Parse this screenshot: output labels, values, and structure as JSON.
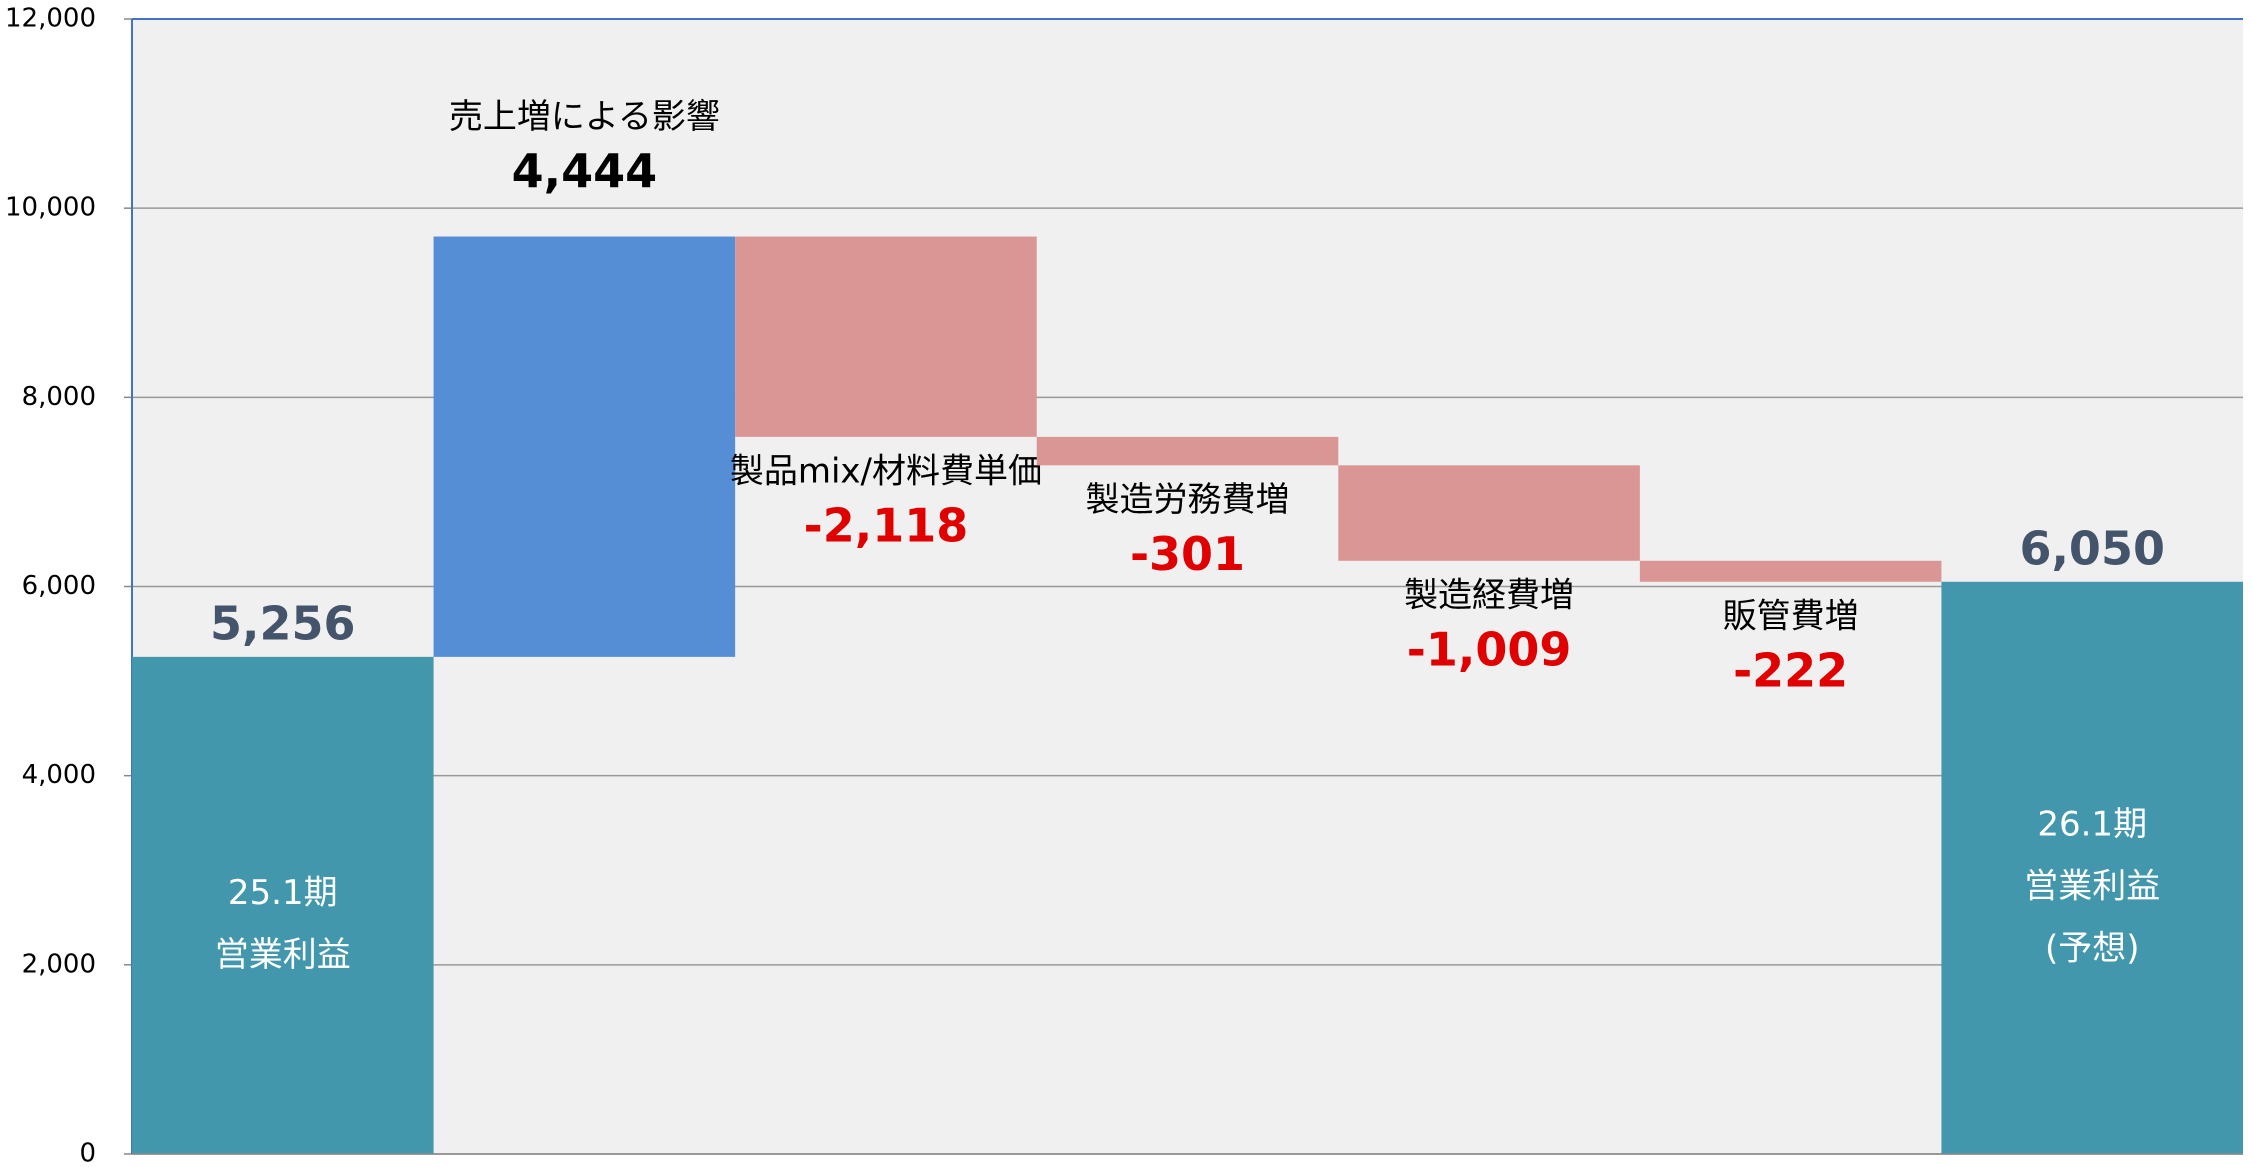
{
  "chart_data": {
    "type": "waterfall",
    "categories": [
      [
        "25.1期",
        "営業利益"
      ],
      [
        "売上増による影響"
      ],
      [
        "製品mix/材料費単価"
      ],
      [
        "製造労務費増"
      ],
      [
        "製造経費増"
      ],
      [
        "販管費増"
      ],
      [
        "26.1期",
        "営業利益",
        "(予想)"
      ]
    ],
    "values": [
      5256,
      4444,
      -2118,
      -301,
      -1009,
      -222,
      6050
    ],
    "value_labels": [
      "5,256",
      "4,444",
      "-2,118",
      "-301",
      "-1,009",
      "-222",
      "6,050"
    ],
    "measure": [
      "absolute",
      "relative",
      "relative",
      "relative",
      "relative",
      "relative",
      "total"
    ],
    "colors": {
      "total": "#4397ad",
      "increase": "#558ed5",
      "decrease": "#d99694"
    },
    "label_colors": {
      "total": "#44546a",
      "increase": "#000000",
      "decrease": "#e00000"
    },
    "ylim": [
      0,
      12000
    ],
    "yticks": [
      0,
      {
        "value": 2000,
        "label": "2,000"
      },
      {
        "value": 4000,
        "label": "4,000"
      },
      {
        "value": 6000,
        "label": "6,000"
      },
      {
        "value": 8000,
        "label": "8,000"
      },
      {
        "value": 10000,
        "label": "10,000"
      },
      {
        "value": 12000,
        "label": "12,000"
      }
    ],
    "grid": true
  }
}
